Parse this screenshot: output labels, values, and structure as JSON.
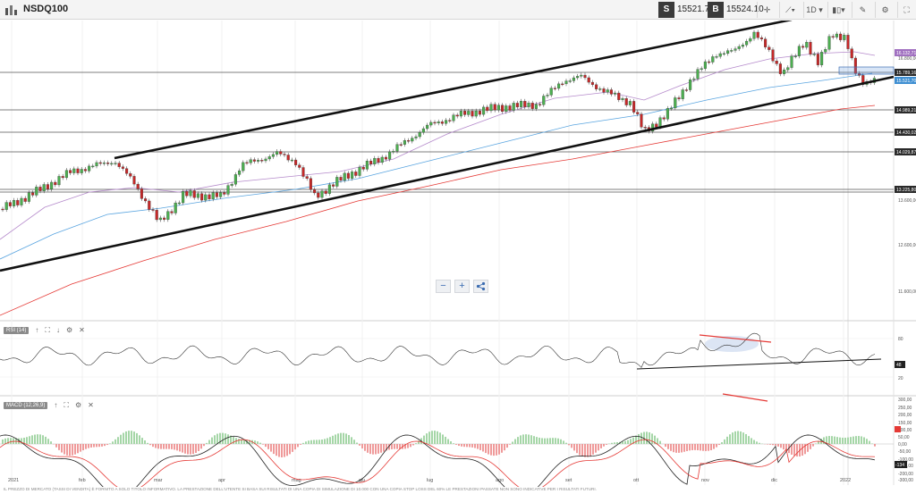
{
  "header": {
    "symbol": "NSDQ100",
    "sell_label": "S",
    "sell_price": "15521.70",
    "buy_label": "B",
    "buy_price": "15524.10",
    "timeframe": "1D",
    "buttons": [
      {
        "name": "crosshair-button",
        "icon": "crosshair-icon",
        "glyph": "✛"
      },
      {
        "name": "chart-type-line-button",
        "icon": "line-chart-icon",
        "glyph": "⟋▾"
      },
      {
        "name": "timeframe-button",
        "icon": "chevron-down-icon",
        "glyph": "1D ▾"
      },
      {
        "name": "chart-type-candle-button",
        "icon": "candlestick-icon",
        "glyph": "▮▯▾"
      },
      {
        "name": "drawing-tools-button",
        "icon": "pencil-icon",
        "glyph": "✎"
      },
      {
        "name": "settings-button",
        "icon": "gear-icon",
        "glyph": "⚙"
      },
      {
        "name": "fullscreen-button",
        "icon": "expand-icon",
        "glyph": "⛶"
      }
    ]
  },
  "price_axis": {
    "tick_labels": [
      "16.800,00",
      "14.000,00",
      "13.600,00",
      "12.600,00",
      "11.600,00"
    ],
    "tags": [
      {
        "label": "16.132,71",
        "color": "#a070c0"
      },
      {
        "label": "15.789,16",
        "color": "#2a2a2a"
      },
      {
        "label": "15.521,70",
        "color": "#3f8fd2"
      },
      {
        "label": "14.989,21",
        "color": "#2a2a2a"
      },
      {
        "label": "14.430,02",
        "color": "#2a2a2a"
      },
      {
        "label": "14.029,87",
        "color": "#2a2a2a"
      },
      {
        "label": "13.225,80",
        "color": "#2a2a2a"
      }
    ]
  },
  "months": [
    "2021",
    "feb",
    "mar",
    "apr",
    "mag",
    "giu",
    "lug",
    "ago",
    "set",
    "ott",
    "nov",
    "dic",
    "2022"
  ],
  "rsi": {
    "label": "RSI (14)",
    "tick_labels": [
      "80",
      "20"
    ],
    "value_tag": "48"
  },
  "macd": {
    "label": "MACD (12,26,9)",
    "tick_labels": [
      "300,00",
      "250,00",
      "200,00",
      "150,00",
      "100,00",
      "50,00",
      "0,00",
      "-50,00",
      "-100,00",
      "-150,00",
      "-200,00",
      "-300,00"
    ],
    "value_tag": "-134"
  },
  "zoom": {
    "out": "−",
    "in": "+",
    "share": "share-icon"
  },
  "disclaimer": "IL PREZZO DI MERCATO (TASSI DI VENDITA) È FORNITO A SOLO TITOLO INFORMATIVO. LA PRESTAZIONE DELL'UTENTE SI BASA SUI RISULTATI DI UNA COPIA DI SIMULAZIONE DI 10.000 CON UNA COPIA STOP LOSS DEL 60% LE PRESTAZIONI PASSATE NON SONO INDICATIVE PER I RISULTATI FUTURI.",
  "colors": {
    "sma_fast": "#b58acb",
    "sma_mid": "#5aa5e0",
    "sma_slow": "#e53935",
    "candle_up": "#4caf50",
    "candle_down": "#c62828",
    "hist_up": "#a5d6a7",
    "hist_down": "#ef9a9a"
  }
}
